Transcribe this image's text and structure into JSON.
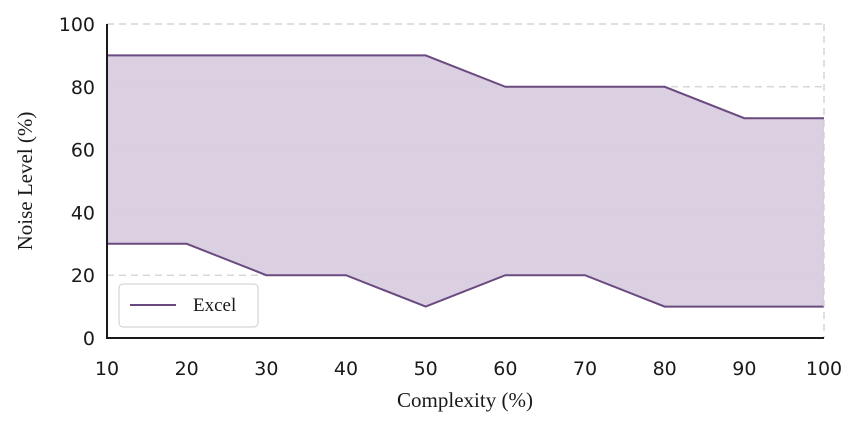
{
  "chart_data": {
    "type": "area",
    "title": "",
    "xlabel": "Complexity (%)",
    "ylabel": "Noise Level (%)",
    "x": [
      10,
      20,
      30,
      40,
      50,
      60,
      70,
      80,
      90,
      100
    ],
    "series": [
      {
        "name": "Excel",
        "lower": [
          30,
          30,
          20,
          20,
          10,
          20,
          20,
          10,
          10,
          10
        ],
        "upper": [
          90,
          90,
          90,
          90,
          90,
          80,
          80,
          80,
          70,
          70
        ]
      }
    ],
    "xlim": [
      10,
      100
    ],
    "ylim": [
      0,
      100
    ],
    "xticks": [
      "10",
      "20",
      "30",
      "40",
      "50",
      "60",
      "70",
      "80",
      "90",
      "100"
    ],
    "yticks": [
      "0",
      "20",
      "40",
      "60",
      "80",
      "100"
    ],
    "grid": "horizontal dashed",
    "legend_position": "bottom-left",
    "colors": {
      "line": "#6b4a80",
      "fill": "#d8cde0",
      "grid": "#cccccc",
      "axis": "#1a1a1a"
    }
  }
}
